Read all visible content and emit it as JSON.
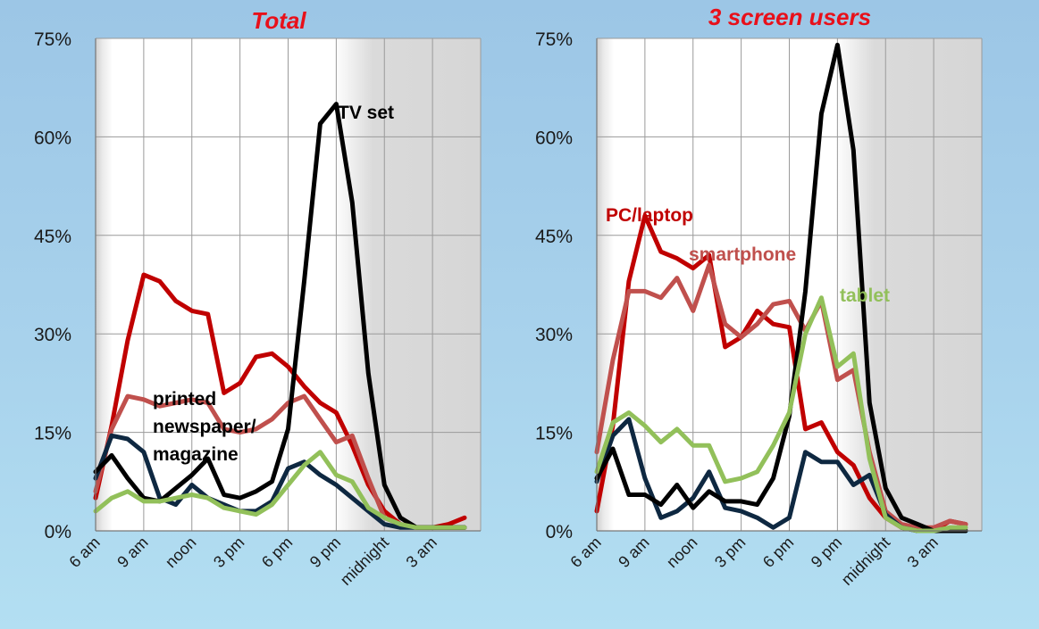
{
  "colors": {
    "tv": "#000000",
    "pc": "#c00000",
    "newspaper": "#0e2841",
    "smartphone": "#c0504d",
    "tablet": "#92c05a",
    "title": "#e8101a"
  },
  "chart_data": [
    {
      "type": "line",
      "title": "Total",
      "ylim": [
        0,
        75
      ],
      "y_ticks": [
        "0%",
        "15%",
        "30%",
        "45%",
        "60%",
        "75%"
      ],
      "x_tick_labels": [
        "6 am",
        "9 am",
        "noon",
        "3 pm",
        "6 pm",
        "9 pm",
        "midnight",
        "3 am"
      ],
      "x": [
        6,
        7,
        8,
        9,
        10,
        11,
        12,
        13,
        14,
        15,
        16,
        17,
        18,
        19,
        20,
        21,
        22,
        23,
        24,
        25,
        26,
        27,
        28,
        29
      ],
      "night_shading": "before 7 am and after 23 pm",
      "grid": true,
      "series": [
        {
          "key": "pc",
          "label": "",
          "values": [
            5,
            16,
            29,
            39,
            38,
            35,
            33.5,
            33,
            21,
            22.5,
            26.5,
            27,
            25,
            22,
            19.5,
            18,
            13,
            7,
            3,
            1,
            0.5,
            0.5,
            1,
            2
          ]
        },
        {
          "key": "smartphone",
          "label": "",
          "values": [
            6,
            15.5,
            20.5,
            20,
            19,
            19.5,
            20,
            19.5,
            15.5,
            15,
            15.5,
            17,
            19.5,
            20.5,
            17,
            13.5,
            14.5,
            8,
            2,
            1,
            0.5,
            0.5,
            0.5,
            0.5
          ]
        },
        {
          "key": "newspaper",
          "label": "",
          "values": [
            8,
            14.5,
            14,
            12,
            5,
            4,
            7,
            5,
            4,
            3,
            3,
            4.5,
            9.5,
            10.5,
            8.5,
            7,
            5,
            3,
            1,
            0.5,
            0.5,
            0.5,
            0.5,
            0.5
          ]
        },
        {
          "key": "tv",
          "label": "TV set",
          "values": [
            9,
            11.5,
            8,
            5,
            4.5,
            6.5,
            8.5,
            11,
            5.5,
            5,
            6,
            7.5,
            15.5,
            38,
            62,
            65,
            50,
            24,
            7,
            2,
            0.5,
            0.5,
            0.5,
            0.5
          ]
        },
        {
          "key": "tablet",
          "label": "",
          "values": [
            3,
            5,
            6,
            4.5,
            4.5,
            5,
            5.5,
            5,
            3.5,
            3,
            2.5,
            4,
            7,
            10,
            12,
            8.5,
            7.5,
            3.5,
            2,
            1,
            0.5,
            0.5,
            0.5,
            0.5
          ]
        }
      ],
      "annotations": [
        "printed",
        "newspaper/",
        "magazine"
      ]
    },
    {
      "type": "line",
      "title": "3 screen users",
      "ylim": [
        0,
        75
      ],
      "y_ticks": [
        "0%",
        "15%",
        "30%",
        "45%",
        "60%",
        "75%"
      ],
      "x_tick_labels": [
        "6 am",
        "9 am",
        "noon",
        "3 pm",
        "6 pm",
        "9 pm",
        "midnight",
        "3 am"
      ],
      "x": [
        6,
        7,
        8,
        9,
        10,
        11,
        12,
        13,
        14,
        15,
        16,
        17,
        18,
        19,
        20,
        21,
        22,
        23,
        24,
        25,
        26,
        27,
        28,
        29
      ],
      "night_shading": "before 7 am and after 23 pm",
      "grid": true,
      "series": [
        {
          "key": "smartphone",
          "label": "smartphone",
          "values": [
            12,
            26,
            36.5,
            36.5,
            35.5,
            38.5,
            33.5,
            40.5,
            31.5,
            29.5,
            31.5,
            34.5,
            35,
            30.5,
            35,
            23,
            24.5,
            12,
            3,
            1,
            0.5,
            0.5,
            1.5,
            1
          ]
        },
        {
          "key": "pc",
          "label": "PC/laptop",
          "values": [
            3,
            16,
            38,
            48,
            42.5,
            41.5,
            40,
            42,
            28,
            29.5,
            33.5,
            31.5,
            31,
            15.5,
            16.5,
            12,
            10,
            5,
            2,
            0.5,
            0,
            0,
            1.5,
            1
          ]
        },
        {
          "key": "tablet",
          "label": "tablet",
          "values": [
            9,
            16.5,
            18,
            16,
            13.5,
            15.5,
            13,
            13,
            7.5,
            8,
            9,
            13,
            18,
            30,
            35.5,
            25,
            27,
            11,
            2,
            0.5,
            0,
            0,
            0.5,
            0.5
          ]
        },
        {
          "key": "newspaper",
          "label": "",
          "values": [
            7.5,
            14.5,
            17,
            8,
            2,
            3,
            5,
            9,
            3.5,
            3,
            2,
            0.5,
            2,
            12,
            10.5,
            10.5,
            7,
            8.5,
            2.5,
            0.5,
            0,
            0,
            0,
            0
          ]
        },
        {
          "key": "tv",
          "label": "",
          "values": [
            8,
            12.5,
            5.5,
            5.5,
            4,
            7,
            3.5,
            6,
            4.5,
            4.5,
            4,
            8,
            17.5,
            36.5,
            63.5,
            74,
            58,
            19.5,
            6.5,
            2,
            1,
            0,
            0,
            0
          ]
        }
      ]
    }
  ]
}
